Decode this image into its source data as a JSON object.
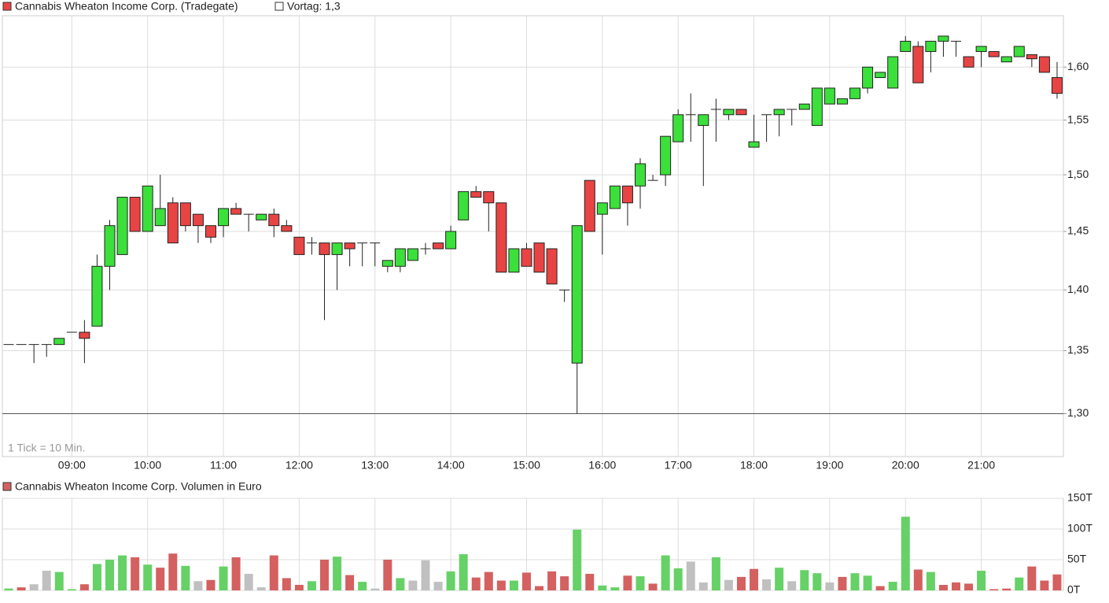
{
  "chart_data": [
    {
      "type": "candlestick",
      "title": "Cannabis Wheaton Income Corp. (Tradegate)",
      "reference": {
        "label": "Vortag: 1,3",
        "value": 1.3,
        "color": "#555555"
      },
      "annotation": "1 Tick = 10 Min.",
      "up_color": "#3be03b",
      "down_color": "#e84444",
      "title_color": "#e84444",
      "log_scale": true,
      "grid": true,
      "categories": [
        null,
        null,
        null,
        null,
        null,
        "09:00",
        null,
        null,
        null,
        null,
        null,
        "10:00",
        null,
        null,
        null,
        null,
        null,
        "11:00",
        null,
        null,
        null,
        null,
        null,
        "12:00",
        null,
        null,
        null,
        null,
        null,
        "13:00",
        null,
        null,
        null,
        null,
        null,
        "14:00",
        null,
        null,
        null,
        null,
        null,
        "15:00",
        null,
        null,
        null,
        null,
        null,
        "16:00",
        null,
        null,
        null,
        null,
        null,
        "17:00",
        null,
        null,
        null,
        null,
        null,
        "18:00",
        null,
        null,
        null,
        null,
        null,
        "19:00",
        null,
        null,
        null,
        null,
        null,
        "20:00",
        null,
        null,
        null,
        null,
        null,
        "21:00",
        null,
        null,
        null,
        null,
        null,
        null
      ],
      "open": [
        1.355,
        1.355,
        1.355,
        1.355,
        1.355,
        1.365,
        1.365,
        1.37,
        1.42,
        1.43,
        1.48,
        1.45,
        1.455,
        1.475,
        1.475,
        1.465,
        1.455,
        1.455,
        1.47,
        1.465,
        1.46,
        1.465,
        1.455,
        1.445,
        1.44,
        1.44,
        1.43,
        1.44,
        1.44,
        1.44,
        1.42,
        1.42,
        1.425,
        1.435,
        1.44,
        1.435,
        1.46,
        1.485,
        1.485,
        1.475,
        1.415,
        1.435,
        1.44,
        1.435,
        1.4,
        1.34,
        1.495,
        1.465,
        1.47,
        1.49,
        1.49,
        1.495,
        1.5,
        1.53,
        1.555,
        1.545,
        1.56,
        1.555,
        1.56,
        1.525,
        1.555,
        1.555,
        1.56,
        1.56,
        1.545,
        1.565,
        1.565,
        1.57,
        1.58,
        1.59,
        1.58,
        1.615,
        1.62,
        1.615,
        1.625,
        1.625,
        1.61,
        1.615,
        1.615,
        1.605,
        1.61,
        1.612,
        1.61,
        1.59
      ],
      "high": [
        1.355,
        1.355,
        1.355,
        1.355,
        1.36,
        1.365,
        1.375,
        1.43,
        1.46,
        1.48,
        1.48,
        1.49,
        1.5,
        1.48,
        1.475,
        1.465,
        1.455,
        1.47,
        1.475,
        1.465,
        1.465,
        1.47,
        1.46,
        1.445,
        1.445,
        1.44,
        1.44,
        1.44,
        1.44,
        1.44,
        1.425,
        1.435,
        1.435,
        1.44,
        1.44,
        1.455,
        1.485,
        1.49,
        1.485,
        1.475,
        1.435,
        1.44,
        1.44,
        1.435,
        1.4,
        1.455,
        1.495,
        1.475,
        1.49,
        1.49,
        1.515,
        1.5,
        1.535,
        1.56,
        1.575,
        1.555,
        1.57,
        1.56,
        1.56,
        1.555,
        1.555,
        1.56,
        1.56,
        1.565,
        1.58,
        1.58,
        1.57,
        1.58,
        1.6,
        1.595,
        1.61,
        1.63,
        1.625,
        1.625,
        1.63,
        1.625,
        1.61,
        1.62,
        1.615,
        1.61,
        1.62,
        1.612,
        1.61,
        1.605
      ],
      "low": [
        1.355,
        1.355,
        1.34,
        1.345,
        1.355,
        1.365,
        1.34,
        1.37,
        1.4,
        1.43,
        1.45,
        1.45,
        1.455,
        1.44,
        1.45,
        1.44,
        1.44,
        1.445,
        1.465,
        1.45,
        1.46,
        1.445,
        1.45,
        1.43,
        1.43,
        1.375,
        1.4,
        1.42,
        1.42,
        1.42,
        1.415,
        1.415,
        1.425,
        1.43,
        1.435,
        1.435,
        1.46,
        1.48,
        1.45,
        1.415,
        1.415,
        1.42,
        1.415,
        1.405,
        1.39,
        1.3,
        1.45,
        1.43,
        1.47,
        1.455,
        1.47,
        1.495,
        1.49,
        1.53,
        1.53,
        1.49,
        1.53,
        1.55,
        1.555,
        1.525,
        1.53,
        1.535,
        1.545,
        1.56,
        1.545,
        1.565,
        1.565,
        1.57,
        1.575,
        1.59,
        1.58,
        1.615,
        1.585,
        1.595,
        1.61,
        1.61,
        1.6,
        1.6,
        1.61,
        1.605,
        1.61,
        1.6,
        1.595,
        1.57
      ],
      "close": [
        1.355,
        1.355,
        1.355,
        1.355,
        1.36,
        1.365,
        1.36,
        1.42,
        1.455,
        1.48,
        1.45,
        1.49,
        1.47,
        1.44,
        1.455,
        1.455,
        1.445,
        1.47,
        1.465,
        1.465,
        1.465,
        1.455,
        1.45,
        1.43,
        1.44,
        1.43,
        1.44,
        1.435,
        1.44,
        1.44,
        1.425,
        1.435,
        1.435,
        1.435,
        1.435,
        1.45,
        1.485,
        1.48,
        1.475,
        1.415,
        1.435,
        1.42,
        1.415,
        1.405,
        1.4,
        1.455,
        1.45,
        1.475,
        1.49,
        1.475,
        1.51,
        1.495,
        1.535,
        1.555,
        1.555,
        1.555,
        1.56,
        1.56,
        1.555,
        1.53,
        1.555,
        1.56,
        1.56,
        1.565,
        1.58,
        1.58,
        1.57,
        1.58,
        1.6,
        1.595,
        1.61,
        1.625,
        1.585,
        1.625,
        1.63,
        1.625,
        1.6,
        1.62,
        1.61,
        1.61,
        1.62,
        1.608,
        1.595,
        1.575
      ],
      "ylim": [
        1.267,
        1.65
      ],
      "yticks": [
        {
          "value": 1.3,
          "label": "1,30"
        },
        {
          "value": 1.35,
          "label": "1,35"
        },
        {
          "value": 1.4,
          "label": "1,40"
        },
        {
          "value": 1.45,
          "label": "1,45"
        },
        {
          "value": 1.5,
          "label": "1,50"
        },
        {
          "value": 1.55,
          "label": "1,55"
        },
        {
          "value": 1.6,
          "label": "1,60"
        }
      ]
    },
    {
      "type": "bar",
      "title": "Cannabis Wheaton Income Corp. Volumen in Euro",
      "title_color": "#d46060",
      "values": [
        3,
        5,
        10,
        32,
        30,
        2,
        10,
        43,
        50,
        57,
        54,
        42,
        37,
        60,
        40,
        15,
        17,
        39,
        54,
        27,
        5,
        57,
        20,
        9,
        15,
        50,
        55,
        25,
        14,
        3,
        50,
        20,
        16,
        49,
        14,
        31,
        59,
        21,
        30,
        16,
        16,
        29,
        7,
        31,
        23,
        99,
        27,
        8,
        5,
        24,
        23,
        11,
        57,
        36,
        47,
        13,
        54,
        17,
        22,
        35,
        18,
        37,
        15,
        33,
        28,
        13,
        22,
        28,
        24,
        7,
        14,
        120,
        34,
        30,
        9,
        13,
        11,
        32,
        2,
        3,
        21,
        39,
        16,
        26
      ],
      "colors": [
        "#66d166",
        "#d46060",
        "#c0c0c0",
        "#c0c0c0",
        "#66d166",
        "#66d166",
        "#d46060",
        "#66d166",
        "#66d166",
        "#66d166",
        "#d46060",
        "#66d166",
        "#d46060",
        "#d46060",
        "#66d166",
        "#c0c0c0",
        "#d46060",
        "#66d166",
        "#d46060",
        "#c0c0c0",
        "#c0c0c0",
        "#d46060",
        "#d46060",
        "#d46060",
        "#66d166",
        "#d46060",
        "#66d166",
        "#d46060",
        "#66d166",
        "#c0c0c0",
        "#d46060",
        "#66d166",
        "#c0c0c0",
        "#c0c0c0",
        "#c0c0c0",
        "#66d166",
        "#66d166",
        "#d46060",
        "#d46060",
        "#d46060",
        "#66d166",
        "#d46060",
        "#d46060",
        "#d46060",
        "#d46060",
        "#66d166",
        "#d46060",
        "#66d166",
        "#66d166",
        "#d46060",
        "#66d166",
        "#d46060",
        "#66d166",
        "#66d166",
        "#c0c0c0",
        "#c0c0c0",
        "#66d166",
        "#c0c0c0",
        "#d46060",
        "#d46060",
        "#c0c0c0",
        "#66d166",
        "#c0c0c0",
        "#66d166",
        "#66d166",
        "#c0c0c0",
        "#d46060",
        "#66d166",
        "#66d166",
        "#d46060",
        "#66d166",
        "#66d166",
        "#d46060",
        "#66d166",
        "#d46060",
        "#d46060",
        "#d46060",
        "#66d166",
        "#d46060",
        "#d46060",
        "#66d166",
        "#d46060",
        "#d46060",
        "#d46060"
      ],
      "ylim": [
        0,
        150
      ],
      "yticks": [
        {
          "value": 0,
          "label": "0T"
        },
        {
          "value": 50,
          "label": "50T"
        },
        {
          "value": 100,
          "label": "100T"
        },
        {
          "value": 150,
          "label": "150T"
        }
      ],
      "grid": true
    }
  ]
}
